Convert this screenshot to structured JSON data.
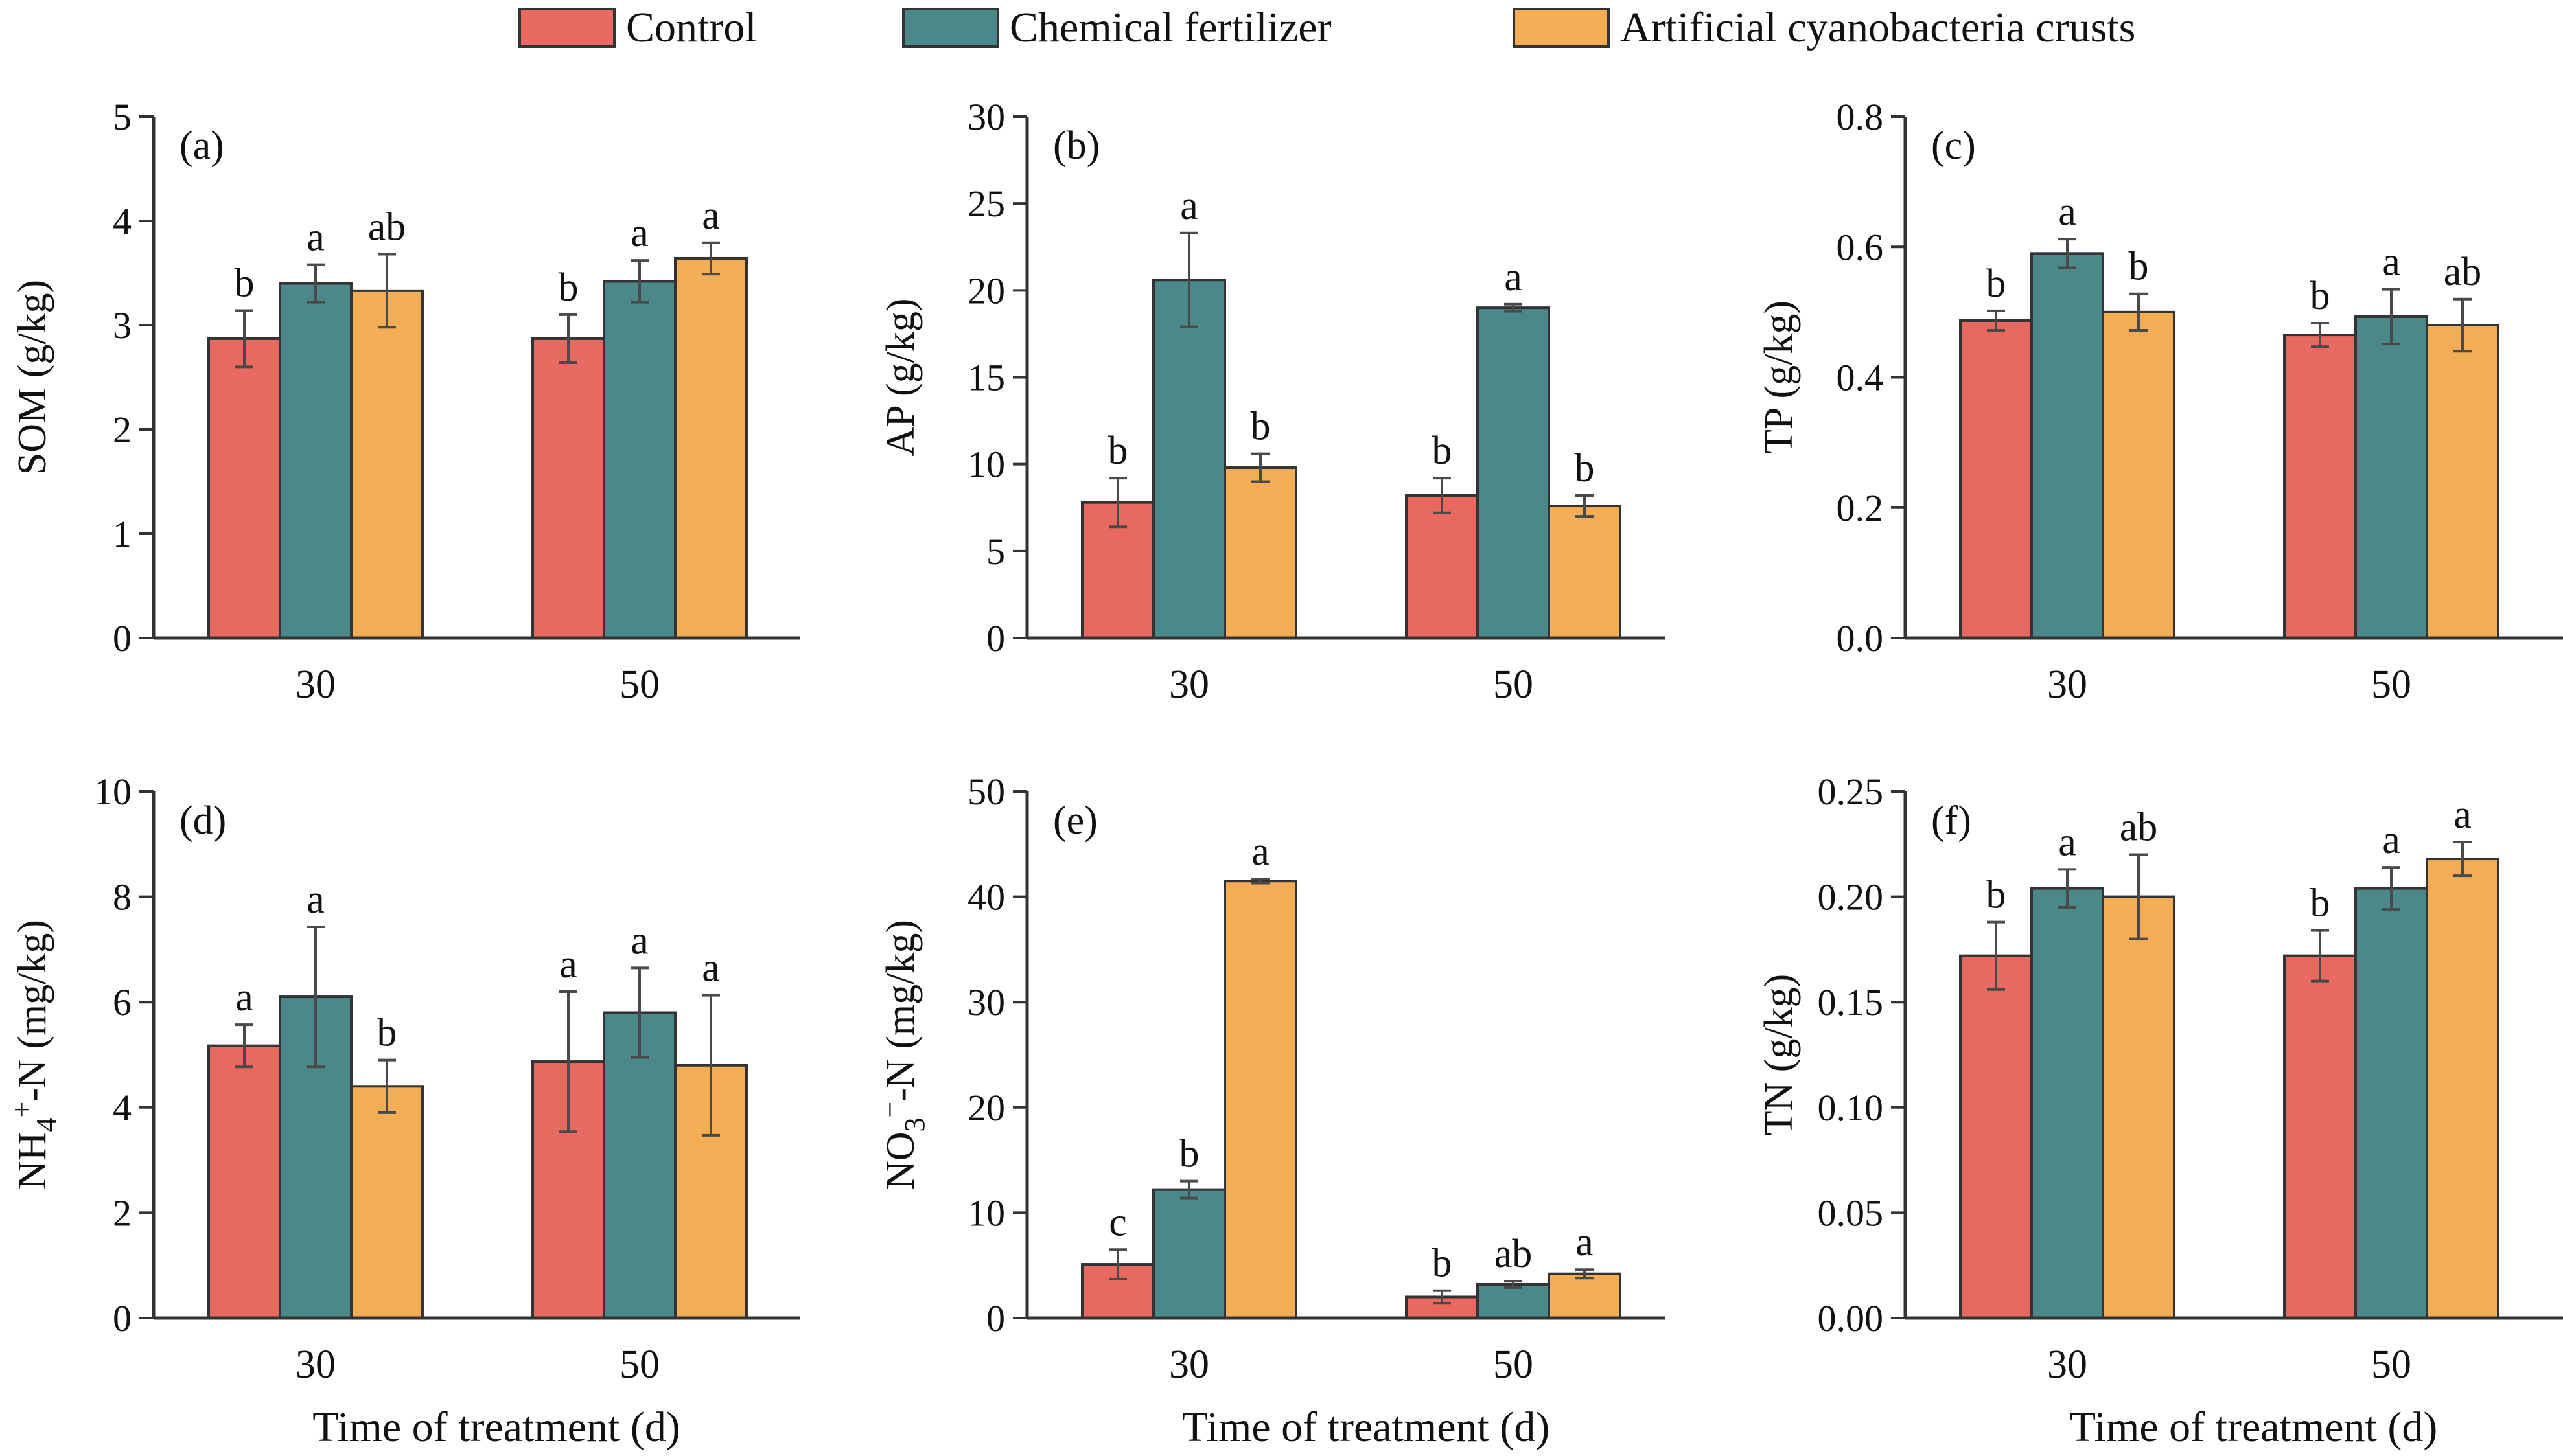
{
  "legend": [
    {
      "label": "Control",
      "color": "#E8695F"
    },
    {
      "label": "Chemical fertilizer",
      "color": "#4A888A"
    },
    {
      "label": "Artificial cyanobacteria crusts",
      "color": "#F3AE55"
    }
  ],
  "chart_data": [
    {
      "type": "bar",
      "panel_label": "(a)",
      "ylabel": "SOM (g/kg)",
      "ylabel_sub": "",
      "ylabel_rest": "",
      "xlabel": "",
      "categories": [
        "30",
        "50"
      ],
      "ylim": [
        0,
        5
      ],
      "yticks": [
        "0",
        "1",
        "2",
        "3",
        "4",
        "5"
      ],
      "series": [
        {
          "name": "Control",
          "values": [
            2.87,
            2.87
          ],
          "errors": [
            0.27,
            0.23
          ],
          "letters": [
            "b",
            "b"
          ]
        },
        {
          "name": "Chemical fertilizer",
          "values": [
            3.4,
            3.42
          ],
          "errors": [
            0.18,
            0.2
          ],
          "letters": [
            "a",
            "a"
          ]
        },
        {
          "name": "Artificial cyanobacteria crusts",
          "values": [
            3.33,
            3.64
          ],
          "errors": [
            0.35,
            0.15
          ],
          "letters": [
            "ab",
            "a"
          ]
        }
      ]
    },
    {
      "type": "bar",
      "panel_label": "(b)",
      "ylabel": "AP (g/kg)",
      "ylabel_sub": "",
      "ylabel_rest": "",
      "xlabel": "",
      "categories": [
        "30",
        "50"
      ],
      "ylim": [
        0,
        30
      ],
      "yticks": [
        "0",
        "5",
        "10",
        "15",
        "20",
        "25",
        "30"
      ],
      "series": [
        {
          "name": "Control",
          "values": [
            7.8,
            8.2
          ],
          "errors": [
            1.4,
            1.0
          ],
          "letters": [
            "b",
            "b"
          ]
        },
        {
          "name": "Chemical fertilizer",
          "values": [
            20.6,
            19.0
          ],
          "errors": [
            2.7,
            0.2
          ],
          "letters": [
            "a",
            "a"
          ]
        },
        {
          "name": "Artificial cyanobacteria crusts",
          "values": [
            9.8,
            7.6
          ],
          "errors": [
            0.8,
            0.6
          ],
          "letters": [
            "b",
            "b"
          ]
        }
      ]
    },
    {
      "type": "bar",
      "panel_label": "(c)",
      "ylabel": "TP (g/kg)",
      "ylabel_sub": "",
      "ylabel_rest": "",
      "xlabel": "",
      "categories": [
        "30",
        "50"
      ],
      "ylim": [
        0,
        0.8
      ],
      "yticks": [
        "0.0",
        "0.2",
        "0.4",
        "0.6",
        "0.8"
      ],
      "series": [
        {
          "name": "Control",
          "values": [
            0.487,
            0.465
          ],
          "errors": [
            0.015,
            0.018
          ],
          "letters": [
            "b",
            "b"
          ]
        },
        {
          "name": "Chemical fertilizer",
          "values": [
            0.59,
            0.493
          ],
          "errors": [
            0.022,
            0.042
          ],
          "letters": [
            "a",
            "a"
          ]
        },
        {
          "name": "Artificial cyanobacteria crusts",
          "values": [
            0.5,
            0.48
          ],
          "errors": [
            0.028,
            0.04
          ],
          "letters": [
            "b",
            "ab"
          ]
        }
      ]
    },
    {
      "type": "bar",
      "panel_label": "(d)",
      "ylabel": "NH",
      "ylabel_sub": "4",
      "ylabel_sup": "+",
      "ylabel_rest": "-N (mg/kg)",
      "xlabel": "Time of treatment (d)",
      "categories": [
        "30",
        "50"
      ],
      "ylim": [
        0,
        10
      ],
      "yticks": [
        "0",
        "2",
        "4",
        "6",
        "8",
        "10"
      ],
      "series": [
        {
          "name": "Control",
          "values": [
            5.17,
            4.87
          ],
          "errors": [
            0.4,
            1.33
          ],
          "letters": [
            "a",
            "a"
          ]
        },
        {
          "name": "Chemical fertilizer",
          "values": [
            6.1,
            5.8
          ],
          "errors": [
            1.33,
            0.85
          ],
          "letters": [
            "a",
            "a"
          ]
        },
        {
          "name": "Artificial cyanobacteria crusts",
          "values": [
            4.4,
            4.8
          ],
          "errors": [
            0.5,
            1.33
          ],
          "letters": [
            "b",
            "a"
          ]
        }
      ]
    },
    {
      "type": "bar",
      "panel_label": "(e)",
      "ylabel": "NO",
      "ylabel_sub": "3",
      "ylabel_sup": "−",
      "ylabel_rest": "-N (mg/kg)",
      "xlabel": "Time of treatment (d)",
      "categories": [
        "30",
        "50"
      ],
      "ylim": [
        0,
        50
      ],
      "yticks": [
        "0",
        "10",
        "20",
        "30",
        "40",
        "50"
      ],
      "series": [
        {
          "name": "Control",
          "values": [
            5.1,
            2.0
          ],
          "errors": [
            1.4,
            0.6
          ],
          "letters": [
            "c",
            "b"
          ]
        },
        {
          "name": "Chemical fertilizer",
          "values": [
            12.2,
            3.2
          ],
          "errors": [
            0.8,
            0.3
          ],
          "letters": [
            "b",
            "ab"
          ]
        },
        {
          "name": "Artificial cyanobacteria crusts",
          "values": [
            41.5,
            4.2
          ],
          "errors": [
            0.2,
            0.4
          ],
          "letters": [
            "a",
            "a"
          ]
        }
      ]
    },
    {
      "type": "bar",
      "panel_label": "(f)",
      "ylabel": "TN (g/kg)",
      "ylabel_sub": "",
      "ylabel_rest": "",
      "xlabel": "Time of treatment (d)",
      "categories": [
        "30",
        "50"
      ],
      "ylim": [
        0,
        0.25
      ],
      "yticks": [
        "0.00",
        "0.05",
        "0.10",
        "0.15",
        "0.20",
        "0.25"
      ],
      "series": [
        {
          "name": "Control",
          "values": [
            0.172,
            0.172
          ],
          "errors": [
            0.016,
            0.012
          ],
          "letters": [
            "b",
            "b"
          ]
        },
        {
          "name": "Chemical fertilizer",
          "values": [
            0.204,
            0.204
          ],
          "errors": [
            0.009,
            0.01
          ],
          "letters": [
            "a",
            "a"
          ]
        },
        {
          "name": "Artificial cyanobacteria crusts",
          "values": [
            0.2,
            0.218
          ],
          "errors": [
            0.02,
            0.008
          ],
          "letters": [
            "ab",
            "a"
          ]
        }
      ]
    }
  ]
}
